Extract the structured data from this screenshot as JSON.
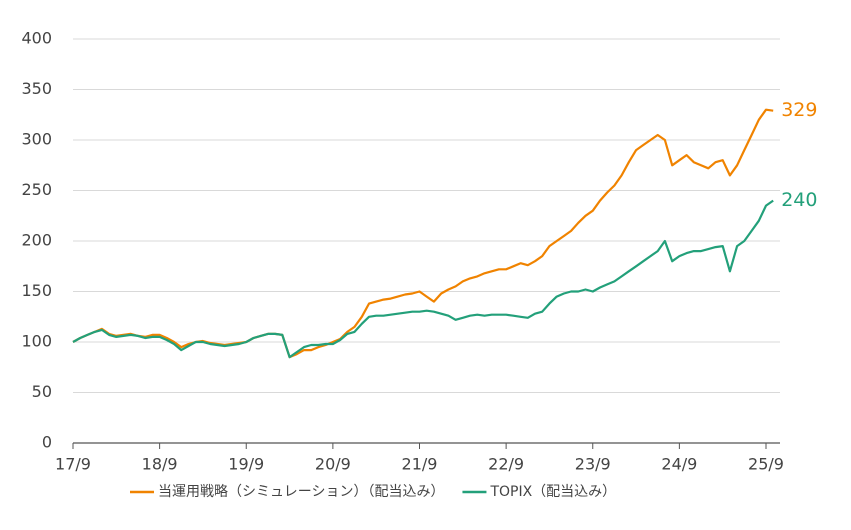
{
  "chart_data": {
    "type": "line",
    "x": [
      "17/9",
      null,
      null,
      null,
      null,
      null,
      null,
      null,
      null,
      null,
      null,
      null,
      "18/9",
      null,
      null,
      null,
      null,
      null,
      null,
      null,
      null,
      null,
      null,
      null,
      "19/9",
      null,
      null,
      null,
      null,
      null,
      null,
      null,
      null,
      null,
      null,
      null,
      "20/9",
      null,
      null,
      null,
      null,
      null,
      null,
      null,
      null,
      null,
      null,
      null,
      "21/9",
      null,
      null,
      null,
      null,
      null,
      null,
      null,
      null,
      null,
      null,
      null,
      "22/9",
      null,
      null,
      null,
      null,
      null,
      null,
      null,
      null,
      null,
      null,
      null,
      "23/9",
      null,
      null,
      null,
      null,
      null,
      null,
      null,
      null,
      null,
      null,
      null,
      "24/9",
      null,
      null,
      null,
      null,
      null,
      null,
      null,
      null,
      null,
      null,
      null,
      "25/9",
      null
    ],
    "series": [
      {
        "name": "当運用戦略（シミュレーション）（配当込み）",
        "color": "#f08300",
        "values": [
          100,
          104,
          107,
          110,
          113,
          108,
          106,
          107,
          108,
          106,
          105,
          107,
          107,
          104,
          100,
          95,
          98,
          100,
          101,
          99,
          98,
          97,
          98,
          99,
          100,
          104,
          106,
          108,
          108,
          107,
          85,
          88,
          92,
          92,
          95,
          97,
          100,
          103,
          110,
          115,
          125,
          138,
          140,
          142,
          143,
          145,
          147,
          148,
          150,
          145,
          140,
          148,
          152,
          155,
          160,
          163,
          165,
          168,
          170,
          172,
          172,
          175,
          178,
          176,
          180,
          185,
          195,
          200,
          205,
          210,
          218,
          225,
          230,
          240,
          248,
          255,
          265,
          278,
          290,
          295,
          300,
          305,
          300,
          275,
          280,
          285,
          278,
          275,
          272,
          278,
          280,
          265,
          275,
          290,
          305,
          320,
          330,
          329
        ]
      },
      {
        "name": "TOPIX（配当込み）",
        "color": "#23a07a",
        "values": [
          100,
          104,
          107,
          110,
          112,
          107,
          105,
          106,
          107,
          106,
          104,
          105,
          105,
          102,
          98,
          92,
          96,
          100,
          100,
          98,
          97,
          96,
          97,
          98,
          100,
          104,
          106,
          108,
          108,
          107,
          85,
          90,
          95,
          97,
          97,
          98,
          98,
          102,
          108,
          110,
          118,
          125,
          126,
          126,
          127,
          128,
          129,
          130,
          130,
          131,
          130,
          128,
          126,
          122,
          124,
          126,
          127,
          126,
          127,
          127,
          127,
          126,
          125,
          124,
          128,
          130,
          138,
          145,
          148,
          150,
          150,
          152,
          150,
          154,
          157,
          160,
          165,
          170,
          175,
          180,
          185,
          190,
          200,
          180,
          185,
          188,
          190,
          190,
          192,
          194,
          195,
          170,
          195,
          200,
          210,
          220,
          235,
          240
        ]
      }
    ],
    "ylim": [
      0,
      400
    ],
    "yticks": [
      0,
      50,
      100,
      150,
      200,
      250,
      300,
      350,
      400
    ],
    "grid": true,
    "legend": "bottom"
  }
}
